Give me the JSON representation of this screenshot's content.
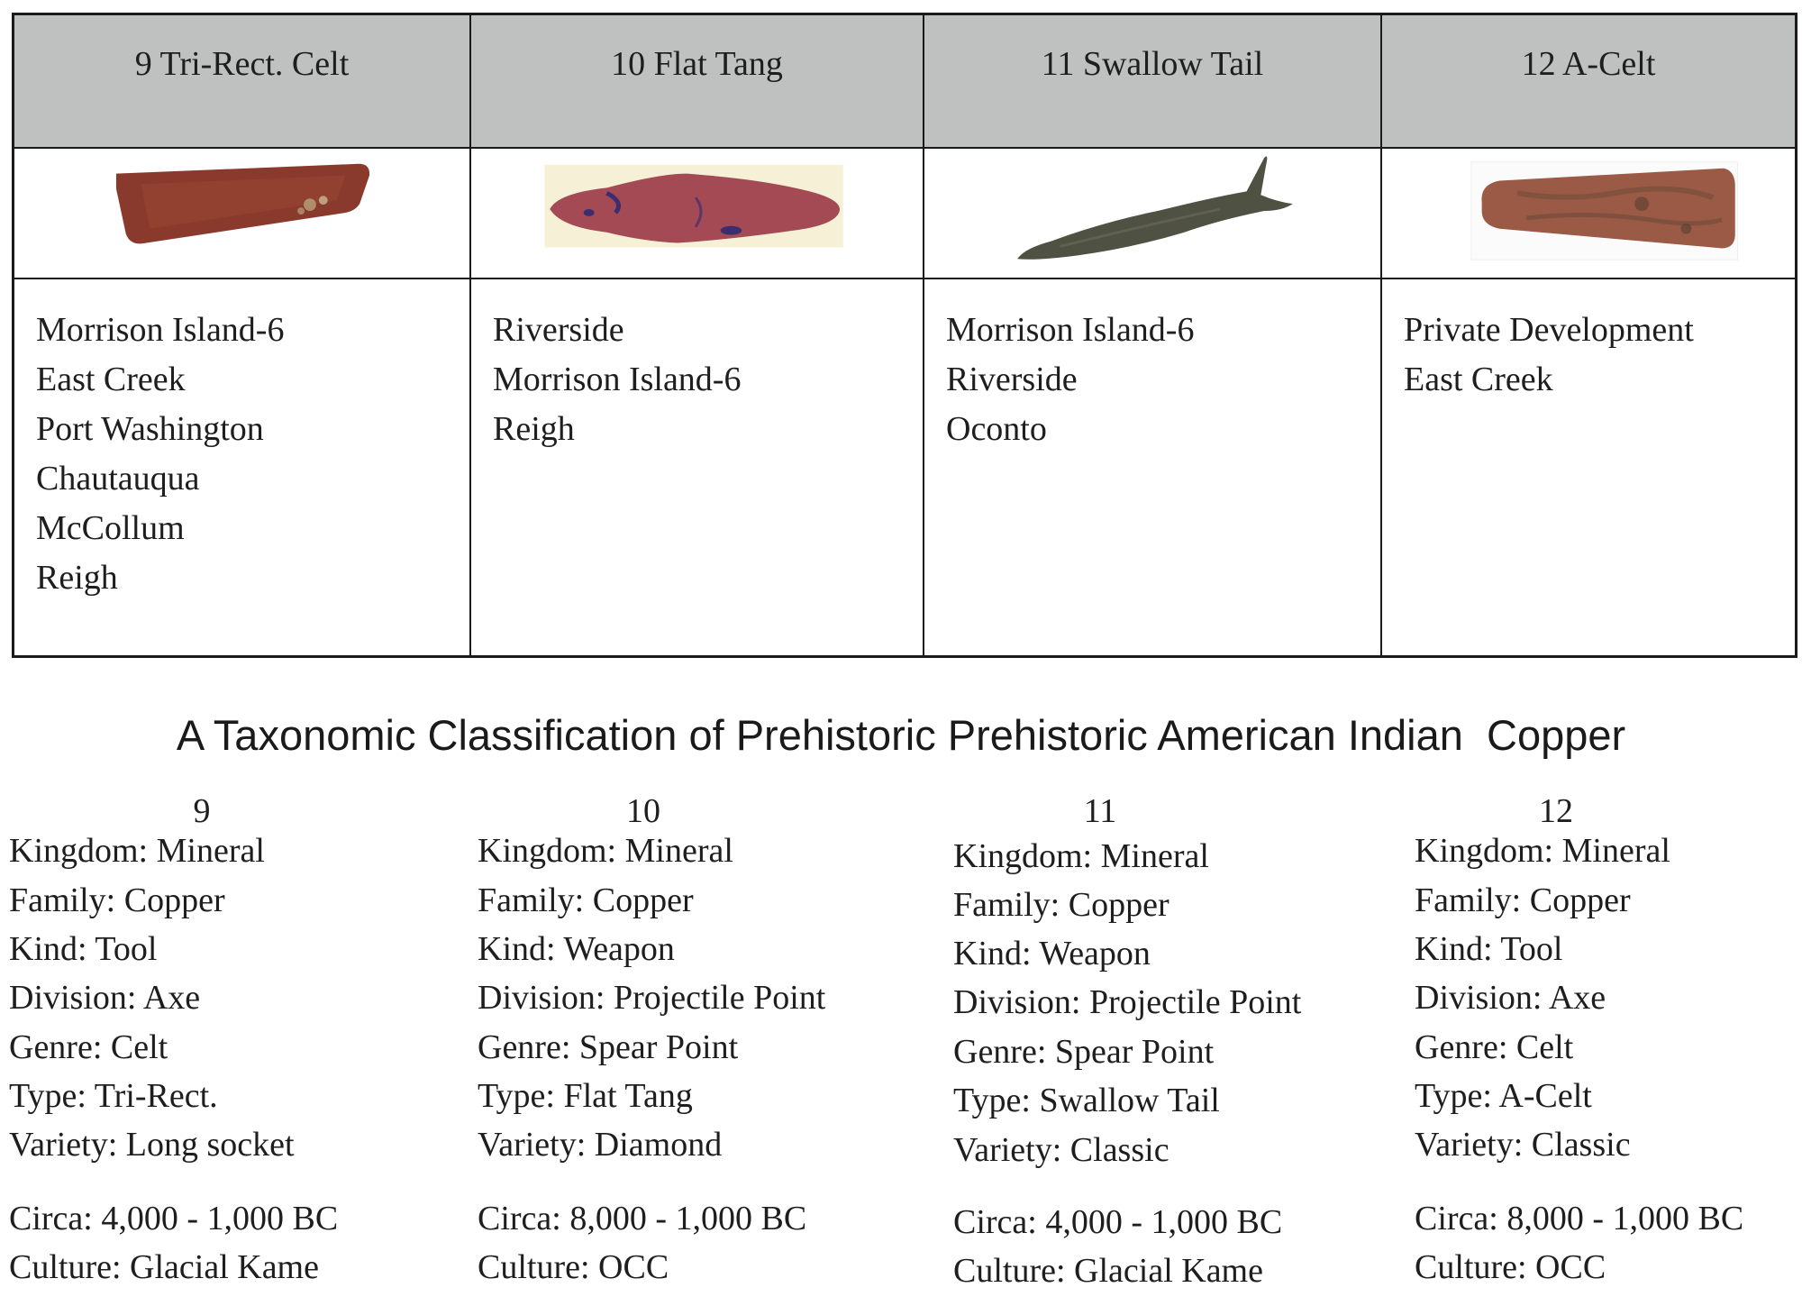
{
  "columns": [
    {
      "header": "9 Tri-Rect. Celt",
      "image_icon": "tri-rect-celt-artifact-icon",
      "sites": [
        "Morrison Island-6",
        "East Creek",
        "Port Washington",
        "Chautauqua",
        "McCollum",
        "Reigh"
      ]
    },
    {
      "header": "10 Flat Tang",
      "image_icon": "flat-tang-artifact-icon",
      "sites": [
        "Riverside",
        "Morrison Island-6",
        "Reigh"
      ]
    },
    {
      "header": "11 Swallow Tail",
      "image_icon": "swallow-tail-artifact-icon",
      "sites": [
        "Morrison Island-6",
        "Riverside",
        "Oconto"
      ]
    },
    {
      "header": "12 A-Celt",
      "image_icon": "a-celt-artifact-icon",
      "sites": [
        "Private Development",
        "East Creek"
      ]
    }
  ],
  "title": "A Taxonomic Classification of Prehistoric Prehistoric American Indian  Copper",
  "taxonomy": [
    {
      "number": "9",
      "kingdom": "Kingdom: Mineral",
      "family": "Family: Copper",
      "kind": "Kind: Tool",
      "division": "Division: Axe",
      "genre": "Genre: Celt",
      "type": "Type: Tri-Rect.",
      "variety": "Variety: Long socket",
      "circa": "Circa: 4,000 - 1,000 BC",
      "culture": "Culture: Glacial Kame"
    },
    {
      "number": "10",
      "kingdom": "Kingdom: Mineral",
      "family": "Family: Copper",
      "kind": "Kind: Weapon",
      "division": "Division: Projectile Point",
      "genre": "Genre: Spear Point",
      "type": "Type: Flat Tang",
      "variety": "Variety: Diamond",
      "circa": "Circa: 8,000 - 1,000 BC",
      "culture": "Culture: OCC"
    },
    {
      "number": "11",
      "kingdom": "Kingdom: Mineral",
      "family": "Family: Copper",
      "kind": "Kind: Weapon",
      "division": "Division: Projectile Point",
      "genre": "Genre: Spear Point",
      "type": "Type: Swallow Tail",
      "variety": "Variety: Classic",
      "circa": "Circa: 4,000 - 1,000 BC",
      "culture": "Culture: Glacial Kame"
    },
    {
      "number": "12",
      "kingdom": "Kingdom: Mineral",
      "family": "Family: Copper",
      "kind": "Kind: Tool",
      "division": "Division: Axe",
      "genre": "Genre: Celt",
      "type": "Type: A-Celt",
      "variety": "Variety: Classic",
      "circa": "Circa: 8,000 - 1,000 BC",
      "culture": "Culture: OCC"
    }
  ],
  "colors": {
    "header_bg": "#bfc1c0",
    "border": "#1a1a1a",
    "celt_red": "#8a3a2c",
    "flat_tang": "#a34a55",
    "swallow_tail": "#4f5142",
    "a_celt": "#9a5a45"
  }
}
